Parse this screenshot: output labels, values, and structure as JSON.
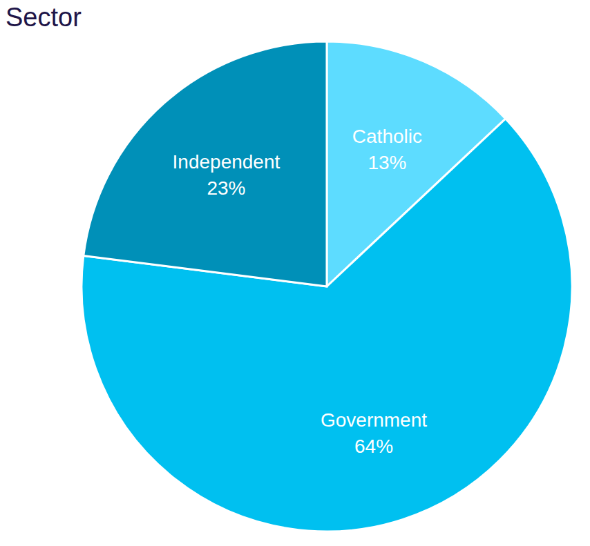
{
  "chart_data": {
    "type": "pie",
    "title": "Sector",
    "categories": [
      "Catholic",
      "Government",
      "Independent"
    ],
    "values": [
      13,
      64,
      23
    ],
    "value_labels": [
      "13%",
      "64%",
      "23%"
    ],
    "colors": [
      "#5ddcff",
      "#00c0f0",
      "#0090b8"
    ],
    "data_labels": true
  }
}
